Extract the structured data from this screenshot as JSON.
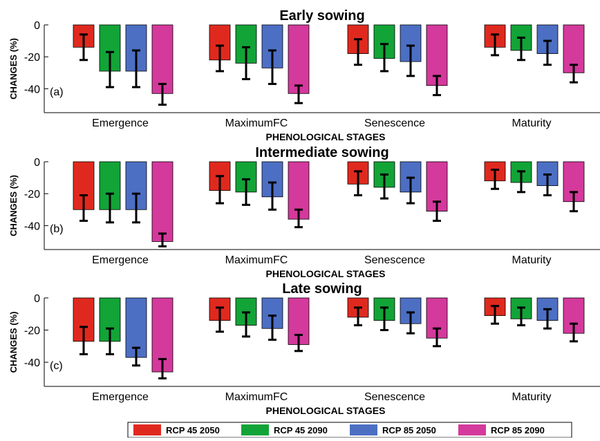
{
  "chart_data": [
    {
      "type": "bar",
      "title": "Early sowing",
      "panel_label": "(a)",
      "xlabel": "PHENOLOGICAL STAGES",
      "ylabel": "CHANGES (%)",
      "ylim": [
        -55,
        0
      ],
      "yticks": [
        0,
        -20,
        -40
      ],
      "ytick_labels": [
        "0",
        "-20",
        "-40"
      ],
      "categories": [
        "Emergence",
        "MaximumFC",
        "Senescence",
        "Maturity"
      ],
      "series": [
        {
          "name": "RCP 45 2050",
          "values": [
            -14,
            -22,
            -18,
            -14
          ],
          "err_low": [
            -22,
            -29,
            -25,
            -19
          ],
          "err_high": [
            -6,
            -13,
            -9,
            -6
          ]
        },
        {
          "name": "RCP 45 2090",
          "values": [
            -29,
            -24,
            -21,
            -16
          ],
          "err_low": [
            -39,
            -34,
            -29,
            -22
          ],
          "err_high": [
            -17,
            -14,
            -12,
            -8
          ]
        },
        {
          "name": "RCP 85 2050",
          "values": [
            -29,
            -27,
            -23,
            -18
          ],
          "err_low": [
            -39,
            -37,
            -32,
            -25
          ],
          "err_high": [
            -16,
            -16,
            -13,
            -10
          ]
        },
        {
          "name": "RCP 85 2090",
          "values": [
            -43,
            -43,
            -38,
            -30
          ],
          "err_low": [
            -50,
            -49,
            -44,
            -36
          ],
          "err_high": [
            -37,
            -38,
            -32,
            -25
          ]
        }
      ]
    },
    {
      "type": "bar",
      "title": "Intermediate sowing",
      "panel_label": "(b)",
      "xlabel": "PHENOLOGICAL STAGES",
      "ylabel": "CHANGES (%)",
      "ylim": [
        -55,
        0
      ],
      "yticks": [
        0,
        -20,
        -40
      ],
      "ytick_labels": [
        "0",
        "-20",
        "-40"
      ],
      "categories": [
        "Emergence",
        "MaximumFC",
        "Senescence",
        "Maturity"
      ],
      "series": [
        {
          "name": "RCP 45 2050",
          "values": [
            -30,
            -18,
            -14,
            -12
          ],
          "err_low": [
            -37,
            -26,
            -21,
            -17
          ],
          "err_high": [
            -21,
            -9,
            -6,
            -5
          ]
        },
        {
          "name": "RCP 45 2090",
          "values": [
            -30,
            -19,
            -16,
            -13
          ],
          "err_low": [
            -38,
            -27,
            -23,
            -19
          ],
          "err_high": [
            -20,
            -11,
            -8,
            -6
          ]
        },
        {
          "name": "RCP 85 2050",
          "values": [
            -30,
            -22,
            -19,
            -15
          ],
          "err_low": [
            -38,
            -30,
            -26,
            -21
          ],
          "err_high": [
            -20,
            -13,
            -10,
            -8
          ]
        },
        {
          "name": "RCP 85 2090",
          "values": [
            -50,
            -36,
            -31,
            -25
          ],
          "err_low": [
            -53,
            -41,
            -37,
            -31
          ],
          "err_high": [
            -45,
            -30,
            -25,
            -19
          ]
        }
      ]
    },
    {
      "type": "bar",
      "title": "Late sowing",
      "panel_label": "(c)",
      "xlabel": "PHENOLOGICAL STAGES",
      "ylabel": "CHANGES (%)",
      "ylim": [
        -55,
        0
      ],
      "yticks": [
        0,
        -20,
        -40
      ],
      "ytick_labels": [
        "0",
        "-20",
        "-40"
      ],
      "categories": [
        "Emergence",
        "MaximumFC",
        "Senescence",
        "Maturity"
      ],
      "series": [
        {
          "name": "RCP 45 2050",
          "values": [
            -27,
            -14,
            -12,
            -11
          ],
          "err_low": [
            -35,
            -21,
            -17,
            -16
          ],
          "err_high": [
            -18,
            -6,
            -6,
            -5
          ]
        },
        {
          "name": "RCP 45 2090",
          "values": [
            -27,
            -17,
            -14,
            -13
          ],
          "err_low": [
            -35,
            -24,
            -20,
            -17
          ],
          "err_high": [
            -19,
            -9,
            -6,
            -6
          ]
        },
        {
          "name": "RCP 85 2050",
          "values": [
            -37,
            -19,
            -16,
            -14
          ],
          "err_low": [
            -42,
            -26,
            -22,
            -19
          ],
          "err_high": [
            -31,
            -11,
            -9,
            -7
          ]
        },
        {
          "name": "RCP 85 2090",
          "values": [
            -46,
            -29,
            -25,
            -22
          ],
          "err_low": [
            -50,
            -33,
            -30,
            -27
          ],
          "err_high": [
            -38,
            -23,
            -19,
            -16
          ]
        }
      ]
    }
  ],
  "legend": {
    "placement": "bottom",
    "items": [
      {
        "label": "RCP 45 2050",
        "color": "#e0291e"
      },
      {
        "label": "RCP 45 2090",
        "color": "#12a437"
      },
      {
        "label": "RCP 85 2050",
        "color": "#4c6fc4"
      },
      {
        "label": "RCP 85 2090",
        "color": "#d4399c"
      }
    ]
  }
}
